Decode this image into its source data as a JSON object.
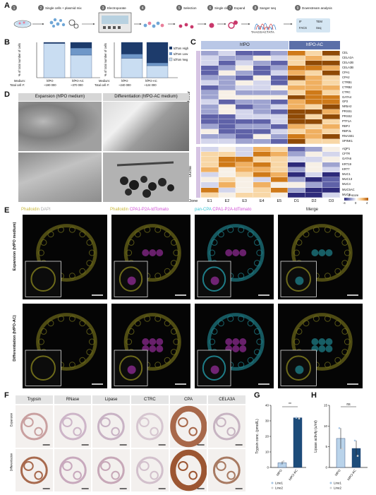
{
  "panel_labels": {
    "a": "A",
    "b": "B",
    "c": "C",
    "d": "D",
    "e": "E",
    "f": "F",
    "g": "G",
    "h": "H"
  },
  "workflow": {
    "steps": [
      {
        "num": "1",
        "label": ""
      },
      {
        "num": "2",
        "label": "Single cells + plasmid mix"
      },
      {
        "num": "3",
        "label": "Electroporate"
      },
      {
        "num": "4",
        "label": ""
      },
      {
        "num": "5",
        "label": "Selection"
      },
      {
        "num": "6",
        "label": "Single clone"
      },
      {
        "num": "7",
        "label": "Expand"
      },
      {
        "num": "8",
        "label": "Sanger seq"
      },
      {
        "num": "9",
        "label": "Downstream analysis"
      }
    ],
    "downstream": [
      "IF",
      "TEM",
      "FACS",
      "Seq"
    ],
    "seq_text": "TAACGACTATA"
  },
  "panel_b": {
    "left": {
      "ylabel": "% of total number of cells",
      "categories": [
        "hfPO",
        "hfPO-AC"
      ],
      "medium_label": "Medium:",
      "total_label": "Total cell #:",
      "totals": [
        "~190 000",
        "~370 000"
      ]
    },
    "right": {
      "ylabel": "% of total number of cells",
      "categories": [
        "hfPO",
        "hfPO-AC"
      ],
      "medium_label": "Medium:",
      "total_label": "Total cell #:",
      "totals": [
        "~240 000",
        "~124 000"
      ]
    },
    "legend": [
      "tdTom High",
      "tdTom Low",
      "tdTom Neg"
    ]
  },
  "panel_c": {
    "groups": [
      "hfPO",
      "hfPO-AC"
    ],
    "row_groups": [
      "Acinar",
      "Ductal"
    ],
    "acinar_genes": [
      "CEL",
      "CELA2A",
      "CELA2B",
      "CELA3B",
      "CPA1",
      "CPA2",
      "CTRB1",
      "CTRB2",
      "CTRC",
      "GATA4",
      "GP2",
      "NR5A2",
      "PRSS1",
      "PRSS2",
      "PTF1A",
      "RBPJ",
      "RBPJL",
      "RNASE1",
      "SPINK1"
    ],
    "ductal_genes": [
      "AQP1",
      "CFTR",
      "GATA6",
      "KRT19",
      "KRT7",
      "MUC1",
      "MUC13",
      "MUC4",
      "MUC5AC",
      "MUC6"
    ],
    "clone_label": "Clone",
    "clones": [
      "E1",
      "E2",
      "E3",
      "E4",
      "E5",
      "D1",
      "D2",
      "D3"
    ],
    "scale_title": "Z-score",
    "scale_ticks": [
      "-4",
      "0",
      "4"
    ]
  },
  "panel_d": {
    "headers": [
      "Expansion (hfPO medium)",
      "Differentiation (hfPO-AC medium)"
    ]
  },
  "panel_e": {
    "row_labels": [
      "Expansion (hfPO medium)",
      "Differentiation (hfPO-AC)"
    ],
    "columns": [
      {
        "parts": [
          "Phalloidin",
          "DAPI"
        ]
      },
      {
        "parts": [
          "Phalloidin",
          "CPA1-P2A-tdTomato"
        ]
      },
      {
        "parts": [
          "pan-CPA",
          "CPA1-P2A-tdTomato"
        ]
      },
      {
        "parts": [
          "Merge"
        ]
      }
    ]
  },
  "panel_f": {
    "columns": [
      "Trypsin",
      "RNase",
      "Lipase",
      "CTRC",
      "CPA",
      "CELA3A"
    ],
    "rows": [
      "Expansion",
      "Differentiation"
    ]
  },
  "panel_g": {
    "significance": "**",
    "legend": [
      "Line1",
      "Line2"
    ],
    "chart_data": {
      "type": "bar",
      "categories": [
        "hfPO",
        "hfPO-AC"
      ],
      "values": [
        3,
        32
      ],
      "points": {
        "Line1": [
          2,
          32
        ],
        "Line2": [
          4,
          31.5
        ]
      },
      "ylabel": "Trypsin conc. (pmol/L)",
      "ylim": [
        0,
        40
      ],
      "yticks": [
        0,
        10,
        20,
        30,
        40
      ]
    }
  },
  "panel_h": {
    "significance": "ns",
    "legend": [
      "Line1",
      "Line2"
    ],
    "chart_data": {
      "type": "bar",
      "categories": [
        "hfPO",
        "hfPO-AC"
      ],
      "values": [
        7,
        4.6
      ],
      "points": {
        "Line1": [
          9.5,
          6.5
        ],
        "Line2": [
          4.5,
          2.8
        ]
      },
      "ylabel": "Lipase activity (u/ml)",
      "ylim": [
        0,
        15
      ],
      "yticks": [
        0,
        5,
        10,
        15
      ]
    }
  }
}
